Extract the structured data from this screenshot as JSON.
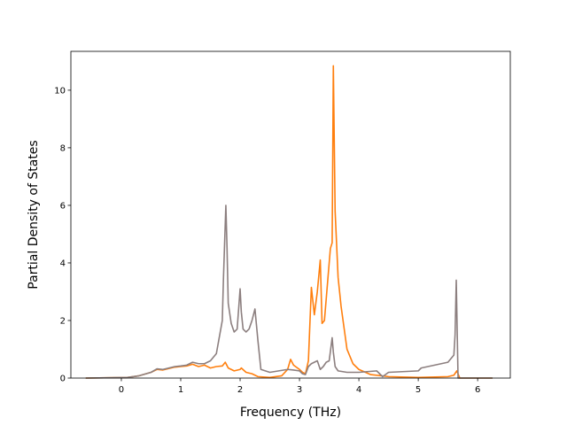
{
  "chart_data": {
    "type": "line",
    "title": "",
    "xlabel": "Frequency (THz)",
    "ylabel": "Partial Density of States",
    "xlim": [
      -0.85,
      6.55
    ],
    "ylim": [
      0,
      11.35
    ],
    "xticks": [
      0,
      1,
      2,
      3,
      4,
      5,
      6
    ],
    "yticks": [
      0,
      2,
      4,
      6,
      8,
      10
    ],
    "grid": false,
    "legend": "none",
    "series": [
      {
        "color": "#ff7f0e",
        "x": [
          -0.6,
          0.1,
          0.3,
          0.5,
          0.6,
          0.7,
          0.8,
          0.9,
          1.0,
          1.1,
          1.2,
          1.3,
          1.4,
          1.5,
          1.6,
          1.7,
          1.75,
          1.8,
          1.9,
          2.0,
          2.02,
          2.1,
          2.2,
          2.3,
          2.5,
          2.7,
          2.8,
          2.85,
          2.9,
          3.0,
          3.05,
          3.1,
          3.15,
          3.2,
          3.25,
          3.3,
          3.35,
          3.38,
          3.42,
          3.48,
          3.52,
          3.55,
          3.57,
          3.6,
          3.65,
          3.7,
          3.8,
          3.9,
          4.0,
          4.2,
          4.5,
          5.0,
          5.5,
          5.6,
          5.65,
          5.7,
          6.25
        ],
        "y": [
          0.0,
          0.02,
          0.08,
          0.2,
          0.3,
          0.28,
          0.33,
          0.38,
          0.4,
          0.42,
          0.48,
          0.4,
          0.45,
          0.35,
          0.4,
          0.42,
          0.55,
          0.35,
          0.25,
          0.3,
          0.35,
          0.2,
          0.15,
          0.05,
          0.02,
          0.08,
          0.3,
          0.65,
          0.45,
          0.3,
          0.2,
          0.15,
          0.6,
          3.15,
          2.2,
          3.0,
          4.1,
          1.9,
          2.0,
          3.5,
          4.5,
          4.7,
          10.85,
          5.8,
          3.5,
          2.5,
          1.0,
          0.5,
          0.3,
          0.12,
          0.05,
          0.02,
          0.05,
          0.1,
          0.25,
          0.0,
          0.0
        ]
      },
      {
        "color": "#8c7f7f",
        "x": [
          -0.6,
          0.1,
          0.3,
          0.5,
          0.6,
          0.7,
          0.8,
          0.9,
          1.0,
          1.1,
          1.2,
          1.3,
          1.4,
          1.5,
          1.6,
          1.7,
          1.72,
          1.76,
          1.78,
          1.8,
          1.85,
          1.9,
          1.95,
          2.0,
          2.02,
          2.05,
          2.1,
          2.15,
          2.2,
          2.25,
          2.3,
          2.35,
          2.5,
          2.8,
          2.9,
          3.0,
          3.05,
          3.1,
          3.15,
          3.2,
          3.3,
          3.35,
          3.4,
          3.45,
          3.5,
          3.55,
          3.57,
          3.6,
          3.65,
          3.8,
          4.0,
          4.3,
          4.4,
          4.5,
          5.0,
          5.05,
          5.5,
          5.6,
          5.62,
          5.64,
          5.67,
          6.25
        ],
        "y": [
          0.0,
          0.02,
          0.08,
          0.2,
          0.32,
          0.3,
          0.35,
          0.4,
          0.42,
          0.45,
          0.55,
          0.5,
          0.5,
          0.6,
          0.85,
          2.0,
          3.5,
          6.0,
          4.5,
          2.6,
          1.9,
          1.6,
          1.7,
          3.1,
          2.3,
          1.7,
          1.6,
          1.7,
          2.0,
          2.4,
          1.3,
          0.3,
          0.2,
          0.3,
          0.28,
          0.25,
          0.15,
          0.12,
          0.4,
          0.5,
          0.6,
          0.3,
          0.4,
          0.55,
          0.6,
          1.4,
          0.9,
          0.4,
          0.25,
          0.2,
          0.2,
          0.25,
          0.05,
          0.2,
          0.25,
          0.35,
          0.55,
          0.8,
          1.5,
          3.4,
          0.0,
          0.0
        ]
      }
    ]
  }
}
